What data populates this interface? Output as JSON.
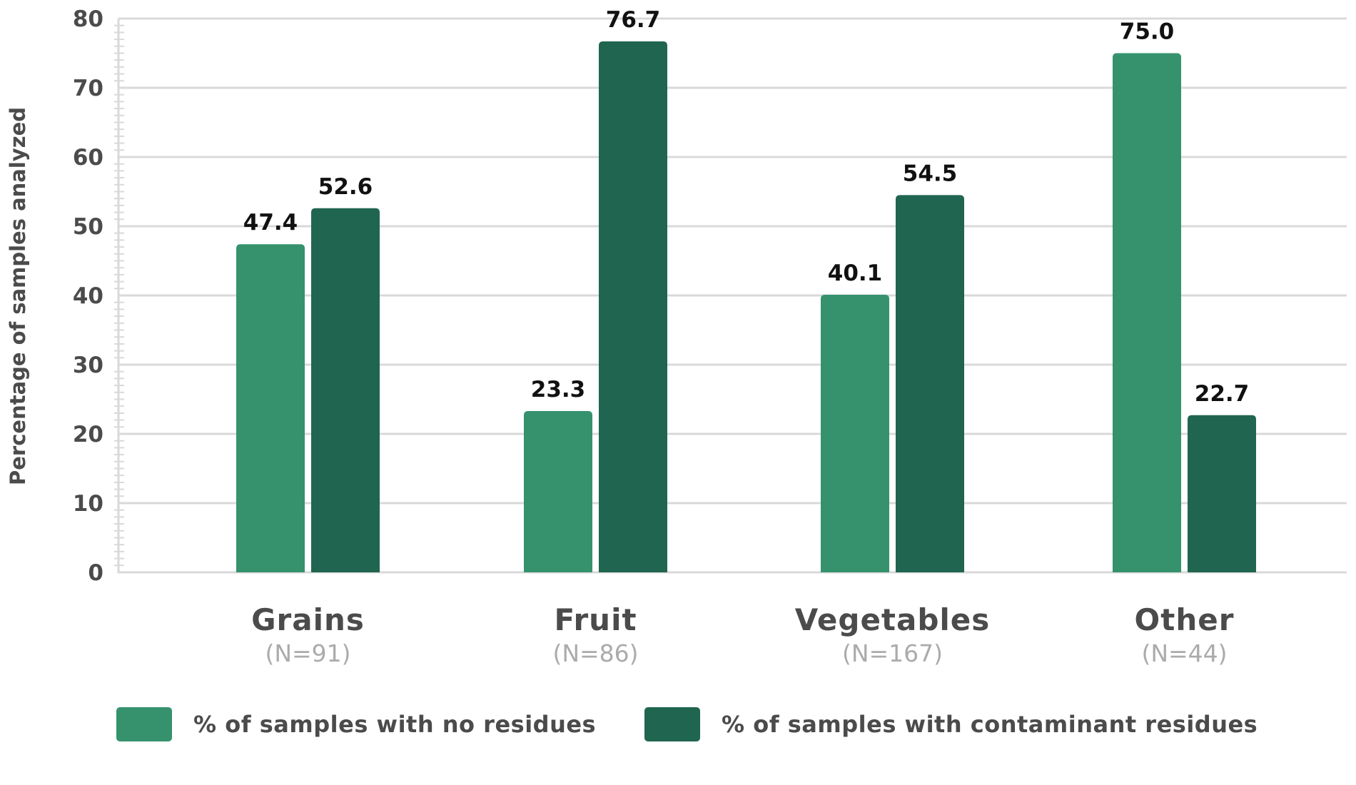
{
  "chart_data": {
    "type": "bar",
    "title": "",
    "xlabel": "",
    "ylabel": "Percentage of samples analyzed",
    "ylim": [
      0,
      80
    ],
    "yticks": [
      0,
      10,
      20,
      30,
      40,
      50,
      60,
      70,
      80
    ],
    "minor_tick_step": 1,
    "grid": true,
    "legend_position": "bottom",
    "categories": [
      "Grains",
      "Fruit",
      "Vegetables",
      "Other"
    ],
    "category_counts": [
      "(N=91)",
      "(N=86)",
      "(N=167)",
      "(N=44)"
    ],
    "series": [
      {
        "name": "% of samples with no residues",
        "color": "#35926d",
        "values": [
          47.4,
          23.3,
          40.1,
          75.0
        ],
        "labels": [
          "47.4",
          "23.3",
          "40.1",
          "75.0"
        ]
      },
      {
        "name": "% of samples with contaminant residues",
        "color": "#20654f",
        "values": [
          52.6,
          76.7,
          54.5,
          22.7
        ],
        "labels": [
          "52.6",
          "76.7",
          "54.5",
          "22.7"
        ]
      }
    ]
  }
}
